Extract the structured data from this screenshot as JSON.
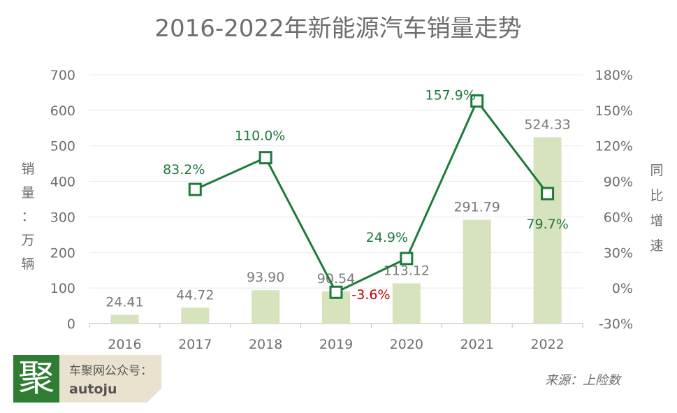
{
  "chart_data": {
    "type": "bar",
    "title": "2016-2022年新能源汽车销量走势",
    "categories": [
      "2016",
      "2017",
      "2018",
      "2019",
      "2020",
      "2021",
      "2022"
    ],
    "series": [
      {
        "type": "bar",
        "axis": "left",
        "color": "#d6e3bc",
        "values": [
          24.41,
          44.72,
          93.9,
          90.54,
          113.12,
          291.79,
          524.33
        ],
        "labels": [
          "24.41",
          "44.72",
          "93.90",
          "90.54",
          "113.12",
          "291.79",
          "524.33"
        ]
      },
      {
        "type": "line",
        "axis": "right",
        "color": "#1e7a3c",
        "marker": "hollow-square",
        "values": [
          null,
          83.2,
          110.0,
          -3.6,
          24.9,
          157.9,
          79.7
        ],
        "labels": [
          "",
          "83.2%",
          "110.0%",
          "-3.6%",
          "24.9%",
          "157.9%",
          "79.7%"
        ],
        "label_colors": [
          "",
          "#1e7a3c",
          "#1e7a3c",
          "#c00000",
          "#1e7a3c",
          "#1e7a3c",
          "#1e7a3c"
        ]
      }
    ],
    "ylabel": "销量：万辆",
    "y2label": "同比增速",
    "ylim": [
      0,
      700
    ],
    "y2lim": [
      -30,
      180
    ],
    "yticks": [
      "0",
      "100",
      "200",
      "300",
      "400",
      "500",
      "600",
      "700"
    ],
    "y2ticks": [
      "-30%",
      "0%",
      "30%",
      "60%",
      "90%",
      "120%",
      "150%",
      "180%"
    ],
    "grid": true,
    "source": "来源：上险数"
  },
  "branding": {
    "logo_char": "聚",
    "line1": "车聚网公众号：",
    "line2": "autoju"
  }
}
